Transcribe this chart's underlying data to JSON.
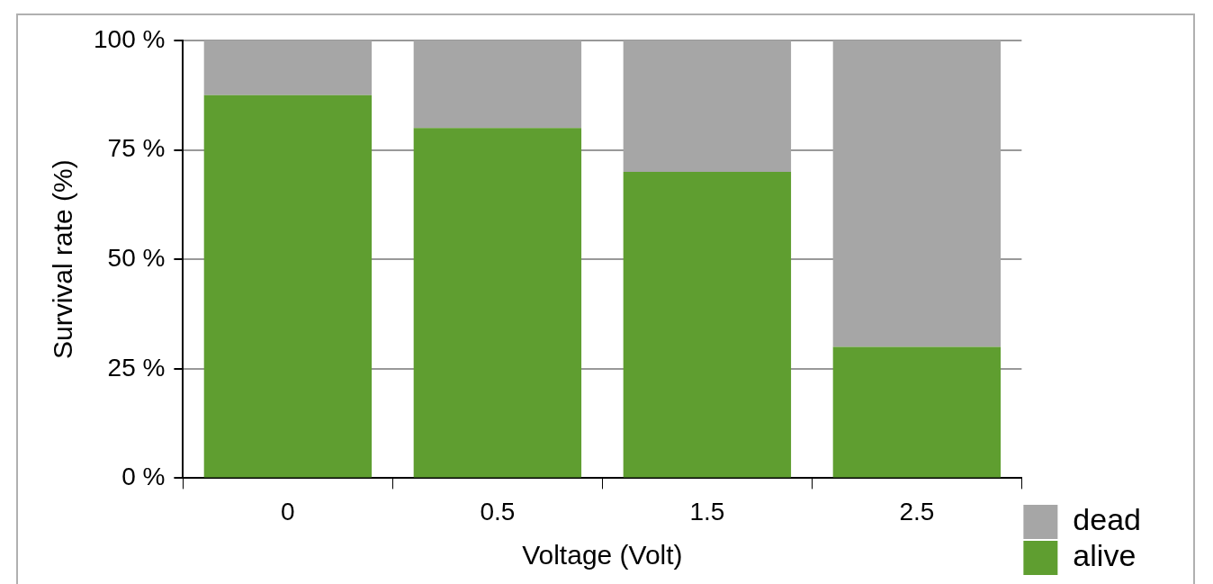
{
  "chart_data": {
    "type": "bar",
    "stacked": true,
    "xlabel": "Voltage (Volt)",
    "ylabel": "Survival rate (%)",
    "categories": [
      "0",
      "0.5",
      "1.5",
      "2.5"
    ],
    "series": [
      {
        "name": "alive",
        "color": "#5f9e30",
        "values": [
          87.5,
          80,
          70,
          30
        ]
      },
      {
        "name": "dead",
        "color": "#a6a6a6",
        "values": [
          12.5,
          20,
          30,
          70
        ]
      }
    ],
    "ylim": [
      0,
      100
    ],
    "yticks": [
      {
        "value": 0,
        "label": "0 %"
      },
      {
        "value": 25,
        "label": "25 %"
      },
      {
        "value": 50,
        "label": "50 %"
      },
      {
        "value": 75,
        "label": "75 %"
      },
      {
        "value": 100,
        "label": "100 %"
      }
    ],
    "grid": "y",
    "legend": "right"
  }
}
